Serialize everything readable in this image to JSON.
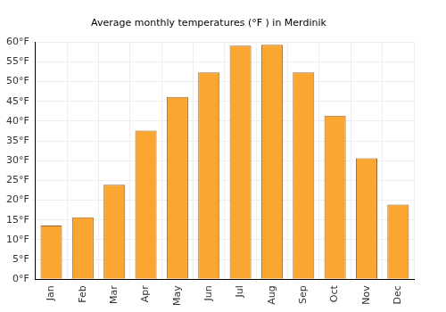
{
  "chart_data": {
    "type": "bar",
    "title": "Average monthly temperatures (°F ) in Merdinik",
    "categories": [
      "Jan",
      "Feb",
      "Mar",
      "Apr",
      "May",
      "Jun",
      "Jul",
      "Aug",
      "Sep",
      "Oct",
      "Nov",
      "Dec"
    ],
    "values": [
      13.6,
      15.7,
      23.9,
      37.6,
      46.1,
      52.3,
      59.1,
      59.3,
      52.3,
      41.4,
      30.6,
      18.9
    ],
    "color": "#fba630",
    "ylim": [
      0,
      60
    ],
    "yticks": [
      {
        "value": 0,
        "label": "0°F"
      },
      {
        "value": 5,
        "label": "5°F"
      },
      {
        "value": 10,
        "label": "10°F"
      },
      {
        "value": 15,
        "label": "15°F"
      },
      {
        "value": 20,
        "label": "20°F"
      },
      {
        "value": 25,
        "label": "25°F"
      },
      {
        "value": 30,
        "label": "30°F"
      },
      {
        "value": 35,
        "label": "35°F"
      },
      {
        "value": 40,
        "label": "40°F"
      },
      {
        "value": 45,
        "label": "45°F"
      },
      {
        "value": 50,
        "label": "50°F"
      },
      {
        "value": 55,
        "label": "55°F"
      },
      {
        "value": 60,
        "label": "60°F"
      }
    ],
    "grid": true
  }
}
